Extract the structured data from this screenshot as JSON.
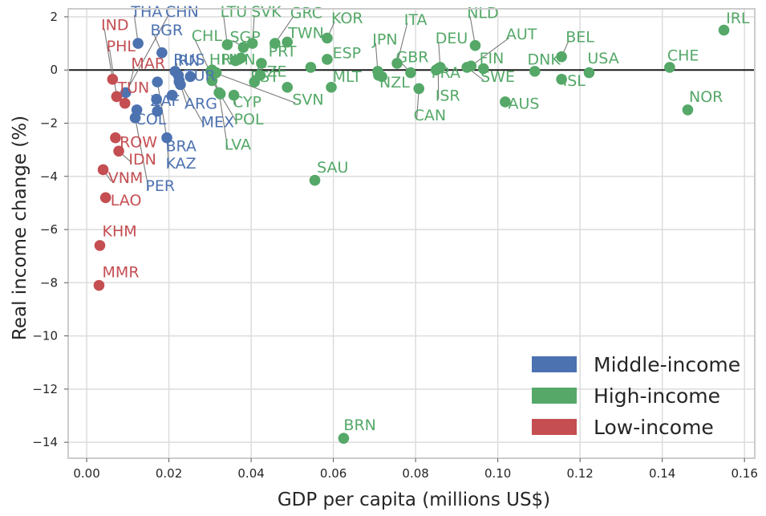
{
  "chart_data": {
    "type": "scatter",
    "title": "",
    "xlabel": "GDP per capita (millions US$)",
    "ylabel": "Real income change (%)",
    "xlim": [
      -0.0045,
      0.1625
    ],
    "ylim": [
      -14.6,
      2.3
    ],
    "xticks": [
      0.0,
      0.02,
      0.04,
      0.06,
      0.08,
      0.1,
      0.12,
      0.14,
      0.16
    ],
    "xtick_labels": [
      "0.00",
      "0.02",
      "0.04",
      "0.06",
      "0.08",
      "0.10",
      "0.12",
      "0.14",
      "0.16"
    ],
    "yticks": [
      2,
      0,
      -2,
      -4,
      -6,
      -8,
      -10,
      -12,
      -14
    ],
    "ytick_labels": [
      "2",
      "0",
      "−2",
      "−4",
      "−6",
      "−8",
      "−10",
      "−12",
      "−14"
    ],
    "zero_line": 0,
    "grid": true,
    "legend_position": "bottom-right",
    "colors": {
      "Middle-income": "#4c72b0",
      "High-income": "#55a868",
      "Low-income": "#c44e52",
      "leader": "#7a7a7a"
    },
    "series": [
      {
        "name": "Middle-income",
        "points": [
          {
            "label": "THA",
            "x": 0.0125,
            "y": 1.0,
            "lx": 0.0108,
            "ly": 2.0
          },
          {
            "label": "CHN",
            "x": 0.0095,
            "y": -0.85,
            "lx": 0.0191,
            "ly": 2.0
          },
          {
            "label": "BGR",
            "x": 0.0183,
            "y": 0.65,
            "lx": 0.0155,
            "ly": 1.3
          },
          {
            "label": "RUS",
            "x": 0.0223,
            "y": -0.2,
            "lx": 0.0211,
            "ly": 0.2
          },
          {
            "label": "IRN",
            "x": 0.0215,
            "y": -0.05,
            "lx": 0.0211,
            "ly": 0.15
          },
          {
            "label": "TUR",
            "x": 0.0252,
            "y": -0.25,
            "lx": 0.0238,
            "ly": -0.4
          },
          {
            "label": "ZAF",
            "x": 0.017,
            "y": -1.1,
            "lx": 0.0155,
            "ly": -1.35
          },
          {
            "label": "ARG",
            "x": 0.0228,
            "y": -0.55,
            "lx": 0.0238,
            "ly": -1.45
          },
          {
            "label": "MEX",
            "x": 0.0225,
            "y": -0.4,
            "lx": 0.0278,
            "ly": -2.15
          },
          {
            "label": "COL",
            "x": 0.0122,
            "y": -1.5,
            "lx": 0.0118,
            "ly": -2.05
          },
          {
            "label": "BRA",
            "x": 0.0172,
            "y": -0.45,
            "lx": 0.0192,
            "ly": -3.05
          },
          {
            "label": "KAZ",
            "x": 0.0195,
            "y": -2.55,
            "lx": 0.0192,
            "ly": -3.7
          },
          {
            "label": "PER",
            "x": 0.0118,
            "y": -1.8,
            "lx": 0.0143,
            "ly": -4.55
          },
          {
            "label": "",
            "x": 0.0208,
            "y": -0.95
          },
          {
            "label": "",
            "x": 0.0172,
            "y": -1.55
          },
          {
            "label": "",
            "x": 0.0225,
            "y": -0.45
          }
        ]
      },
      {
        "name": "High-income",
        "points": [
          {
            "label": "LTU",
            "x": 0.0342,
            "y": 0.95,
            "lx": 0.0325,
            "ly": 2.0
          },
          {
            "label": "SVK",
            "x": 0.0403,
            "y": 1.0,
            "lx": 0.04,
            "ly": 2.0
          },
          {
            "label": "GRC",
            "x": 0.0458,
            "y": 1.0,
            "lx": 0.0495,
            "ly": 1.95
          },
          {
            "label": "KOR",
            "x": 0.0585,
            "y": 1.2,
            "lx": 0.0595,
            "ly": 1.75
          },
          {
            "label": "CHL",
            "x": 0.0325,
            "y": -0.9,
            "lx": 0.0255,
            "ly": 1.1
          },
          {
            "label": "SGP",
            "x": 0.0381,
            "y": 0.85,
            "lx": 0.0348,
            "ly": 1.05
          },
          {
            "label": "TWN",
            "x": 0.0488,
            "y": 1.05,
            "lx": 0.049,
            "ly": 1.2
          },
          {
            "label": "ITA",
            "x": 0.0755,
            "y": 0.25,
            "lx": 0.0772,
            "ly": 1.7
          },
          {
            "label": "NLD",
            "x": 0.0945,
            "y": 0.92,
            "lx": 0.0925,
            "ly": 1.95
          },
          {
            "label": "IRL",
            "x": 0.155,
            "y": 1.5,
            "lx": 0.1555,
            "ly": 1.75
          },
          {
            "label": "JPN",
            "x": 0.0708,
            "y": -0.05,
            "lx": 0.0695,
            "ly": 0.95
          },
          {
            "label": "DEU",
            "x": 0.086,
            "y": 0.1,
            "lx": 0.0848,
            "ly": 1.0
          },
          {
            "label": "AUT",
            "x": 0.0935,
            "y": 0.15,
            "lx": 0.102,
            "ly": 1.15
          },
          {
            "label": "BEL",
            "x": 0.1155,
            "y": 0.5,
            "lx": 0.1165,
            "ly": 1.05
          },
          {
            "label": "PRT",
            "x": 0.0425,
            "y": 0.25,
            "lx": 0.0442,
            "ly": 0.5
          },
          {
            "label": "ESP",
            "x": 0.0585,
            "y": 0.4,
            "lx": 0.0598,
            "ly": 0.45
          },
          {
            "label": "GBR",
            "x": 0.0788,
            "y": -0.1,
            "lx": 0.0752,
            "ly": 0.3
          },
          {
            "label": "FIN",
            "x": 0.0965,
            "y": 0.05,
            "lx": 0.0955,
            "ly": 0.25
          },
          {
            "label": "DNK",
            "x": 0.109,
            "y": -0.05,
            "lx": 0.1072,
            "ly": 0.2
          },
          {
            "label": "USA",
            "x": 0.1222,
            "y": -0.1,
            "lx": 0.1218,
            "ly": 0.25
          },
          {
            "label": "CHE",
            "x": 0.1418,
            "y": 0.1,
            "lx": 0.1412,
            "ly": 0.35
          },
          {
            "label": "SVN",
            "x": 0.0302,
            "y": -0.05,
            "lx": 0.05,
            "ly": -1.3
          },
          {
            "label": "MLT",
            "x": 0.0595,
            "y": -0.65,
            "lx": 0.0598,
            "ly": -0.45
          },
          {
            "label": "NZL",
            "x": 0.0718,
            "y": -0.25,
            "lx": 0.0712,
            "ly": -0.65
          },
          {
            "label": "FRA",
            "x": 0.085,
            "y": 0.0,
            "lx": 0.0838,
            "ly": -0.3
          },
          {
            "label": "SWE",
            "x": 0.0925,
            "y": 0.1,
            "lx": 0.0958,
            "ly": -0.45
          },
          {
            "label": "ISL",
            "x": 0.1155,
            "y": -0.35,
            "lx": 0.1158,
            "ly": -0.6
          },
          {
            "label": "ISR",
            "x": 0.0855,
            "y": 0.05,
            "lx": 0.0848,
            "ly": -1.15
          },
          {
            "label": "AUS",
            "x": 0.1018,
            "y": -1.2,
            "lx": 0.1025,
            "ly": -1.45
          },
          {
            "label": "NOR",
            "x": 0.1462,
            "y": -1.5,
            "lx": 0.1465,
            "ly": -1.2
          },
          {
            "label": "CAN",
            "x": 0.0808,
            "y": -0.7,
            "lx": 0.0795,
            "ly": -1.9
          },
          {
            "label": "HRV",
            "x": 0.0305,
            "y": 0.0,
            "lx": 0.0298,
            "ly": 0.2
          },
          {
            "label": "HUN",
            "x": 0.0315,
            "y": -0.1,
            "lx": 0.0328,
            "ly": 0.2
          },
          {
            "label": "CZE",
            "x": 0.0422,
            "y": -0.2,
            "lx": 0.0412,
            "ly": -0.25
          },
          {
            "label": "EST",
            "x": 0.0408,
            "y": -0.45,
            "lx": 0.0398,
            "ly": -0.45
          },
          {
            "label": "CYP",
            "x": 0.0358,
            "y": -0.95,
            "lx": 0.0355,
            "ly": -1.4
          },
          {
            "label": "POL",
            "x": 0.0305,
            "y": -0.4,
            "lx": 0.0358,
            "ly": -2.05
          },
          {
            "label": "LVA",
            "x": 0.0322,
            "y": -0.85,
            "lx": 0.0335,
            "ly": -3.0
          },
          {
            "label": "SAU",
            "x": 0.0555,
            "y": -4.15,
            "lx": 0.056,
            "ly": -3.85
          },
          {
            "label": "BRN",
            "x": 0.0625,
            "y": -13.85,
            "lx": 0.0625,
            "ly": -13.55
          },
          {
            "label": "",
            "x": 0.0488,
            "y": -0.65
          },
          {
            "label": "",
            "x": 0.0545,
            "y": 0.1
          },
          {
            "label": "",
            "x": 0.0375,
            "y": 0.45
          },
          {
            "label": "",
            "x": 0.0362,
            "y": 0.35
          },
          {
            "label": "",
            "x": 0.071,
            "y": -0.2
          }
        ]
      },
      {
        "name": "Low-income",
        "points": [
          {
            "label": "IND",
            "x": 0.0063,
            "y": -0.35,
            "lx": 0.0035,
            "ly": 1.5
          },
          {
            "label": "PHL",
            "x": 0.0073,
            "y": -1.0,
            "lx": 0.0048,
            "ly": 0.7
          },
          {
            "label": "MAR",
            "x": 0.0093,
            "y": -1.25,
            "lx": 0.0108,
            "ly": 0.05
          },
          {
            "label": "TUN",
            "x": 0.0073,
            "y": -1.0,
            "lx": 0.0075,
            "ly": -0.85
          },
          {
            "label": "ROW",
            "x": 0.007,
            "y": -2.55,
            "lx": 0.008,
            "ly": -2.9
          },
          {
            "label": "IDN",
            "x": 0.0078,
            "y": -3.05,
            "lx": 0.0102,
            "ly": -3.55
          },
          {
            "label": "VNM",
            "x": 0.004,
            "y": -3.75,
            "lx": 0.0052,
            "ly": -4.25
          },
          {
            "label": "LAO",
            "x": 0.0046,
            "y": -4.8,
            "lx": 0.0058,
            "ly": -5.1
          },
          {
            "label": "KHM",
            "x": 0.0032,
            "y": -6.6,
            "lx": 0.0038,
            "ly": -6.25
          },
          {
            "label": "MMR",
            "x": 0.003,
            "y": -8.1,
            "lx": 0.0038,
            "ly": -7.8
          }
        ]
      }
    ]
  }
}
